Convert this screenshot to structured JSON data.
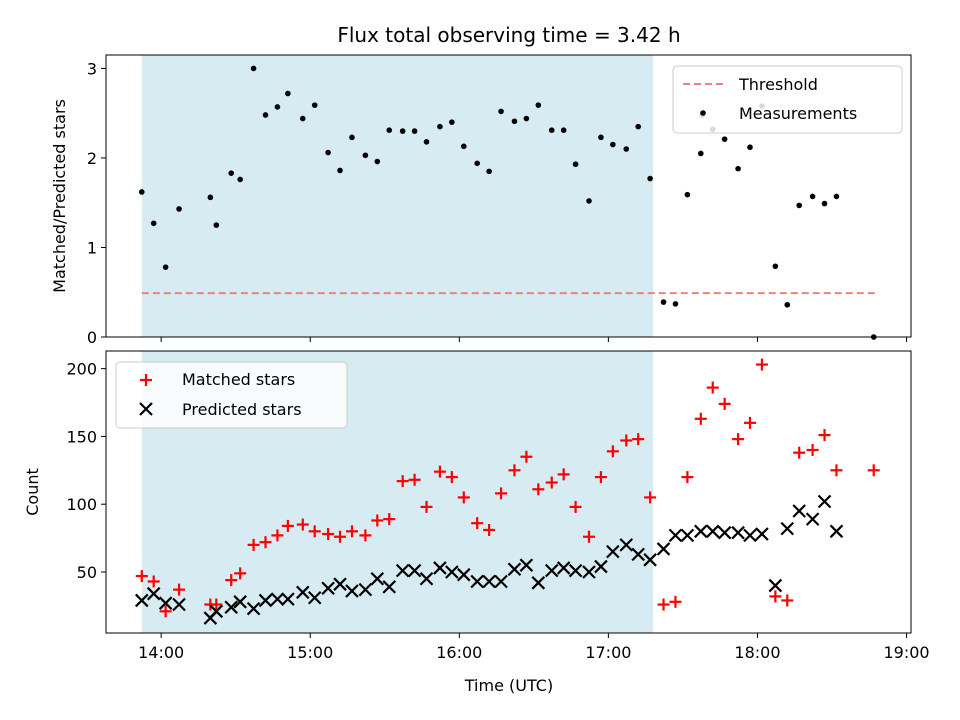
{
  "chart_data": [
    {
      "type": "scatter",
      "title": "Flux total observing time = 3.42 h",
      "ylabel": "Matched/Predicted stars",
      "xlabel": "",
      "x_unit": "hours UTC",
      "xlim": [
        13.63,
        19.03
      ],
      "ylim": [
        0,
        3.15
      ],
      "yticks": [
        0,
        1,
        2,
        3
      ],
      "xticks": [
        14,
        15,
        16,
        17,
        18,
        19
      ],
      "legend_position": "upper right",
      "shaded_interval": [
        13.87,
        17.3
      ],
      "shade_color": "#add8e6",
      "threshold": {
        "name": "Threshold",
        "value": 0.49,
        "x_range": [
          13.87,
          18.8
        ],
        "color": "#f08080"
      },
      "series": [
        {
          "name": "Measurements",
          "color": "#000000",
          "points": [
            [
              13.87,
              1.62
            ],
            [
              13.95,
              1.27
            ],
            [
              14.03,
              0.78
            ],
            [
              14.12,
              1.43
            ],
            [
              14.33,
              1.56
            ],
            [
              14.37,
              1.25
            ],
            [
              14.47,
              1.83
            ],
            [
              14.53,
              1.76
            ],
            [
              14.62,
              3.0
            ],
            [
              14.7,
              2.48
            ],
            [
              14.78,
              2.57
            ],
            [
              14.85,
              2.72
            ],
            [
              14.95,
              2.44
            ],
            [
              15.03,
              2.59
            ],
            [
              15.12,
              2.06
            ],
            [
              15.2,
              1.86
            ],
            [
              15.28,
              2.23
            ],
            [
              15.37,
              2.03
            ],
            [
              15.45,
              1.96
            ],
            [
              15.53,
              2.31
            ],
            [
              15.62,
              2.3
            ],
            [
              15.7,
              2.3
            ],
            [
              15.78,
              2.18
            ],
            [
              15.87,
              2.35
            ],
            [
              15.95,
              2.4
            ],
            [
              16.03,
              2.13
            ],
            [
              16.12,
              1.94
            ],
            [
              16.2,
              1.85
            ],
            [
              16.28,
              2.52
            ],
            [
              16.37,
              2.41
            ],
            [
              16.45,
              2.44
            ],
            [
              16.53,
              2.59
            ],
            [
              16.62,
              2.31
            ],
            [
              16.7,
              2.31
            ],
            [
              16.78,
              1.93
            ],
            [
              16.87,
              1.52
            ],
            [
              16.95,
              2.23
            ],
            [
              17.03,
              2.15
            ],
            [
              17.12,
              2.1
            ],
            [
              17.2,
              2.35
            ],
            [
              17.28,
              1.77
            ],
            [
              17.37,
              0.39
            ],
            [
              17.45,
              0.37
            ],
            [
              17.53,
              1.59
            ],
            [
              17.62,
              2.05
            ],
            [
              17.63,
              2.48
            ],
            [
              17.7,
              2.32
            ],
            [
              17.78,
              2.21
            ],
            [
              17.87,
              1.88
            ],
            [
              17.95,
              2.12
            ],
            [
              18.03,
              2.58
            ],
            [
              18.12,
              0.79
            ],
            [
              18.2,
              0.36
            ],
            [
              18.28,
              1.47
            ],
            [
              18.37,
              1.57
            ],
            [
              18.45,
              1.49
            ],
            [
              18.53,
              1.57
            ],
            [
              18.78,
              0.0
            ]
          ]
        }
      ]
    },
    {
      "type": "scatter",
      "title": "",
      "ylabel": "Count",
      "xlabel": "Time (UTC)",
      "x_unit": "hours UTC",
      "xlim": [
        13.63,
        19.03
      ],
      "ylim": [
        5,
        213
      ],
      "yticks": [
        50,
        100,
        150,
        200
      ],
      "xticks": [
        14,
        15,
        16,
        17,
        18,
        19
      ],
      "xtick_labels": [
        "14:00",
        "15:00",
        "16:00",
        "17:00",
        "18:00",
        "19:00"
      ],
      "legend_position": "upper left",
      "shaded_interval": [
        13.87,
        17.3
      ],
      "shade_color": "#add8e6",
      "series": [
        {
          "name": "Matched stars",
          "marker": "plus",
          "color": "#ff0000",
          "points": [
            [
              13.87,
              47
            ],
            [
              13.95,
              43
            ],
            [
              14.03,
              21
            ],
            [
              14.12,
              37
            ],
            [
              14.33,
              26
            ],
            [
              14.37,
              26
            ],
            [
              14.47,
              44
            ],
            [
              14.53,
              49
            ],
            [
              14.62,
              70
            ],
            [
              14.7,
              72
            ],
            [
              14.78,
              77
            ],
            [
              14.85,
              84
            ],
            [
              14.95,
              85
            ],
            [
              15.03,
              80
            ],
            [
              15.12,
              78
            ],
            [
              15.2,
              76
            ],
            [
              15.28,
              80
            ],
            [
              15.37,
              77
            ],
            [
              15.45,
              88
            ],
            [
              15.53,
              89
            ],
            [
              15.62,
              117
            ],
            [
              15.7,
              118
            ],
            [
              15.78,
              98
            ],
            [
              15.87,
              124
            ],
            [
              15.95,
              120
            ],
            [
              16.03,
              105
            ],
            [
              16.12,
              86
            ],
            [
              16.2,
              81
            ],
            [
              16.28,
              108
            ],
            [
              16.37,
              125
            ],
            [
              16.45,
              135
            ],
            [
              16.53,
              111
            ],
            [
              16.62,
              116
            ],
            [
              16.7,
              122
            ],
            [
              16.78,
              98
            ],
            [
              16.87,
              76
            ],
            [
              16.95,
              120
            ],
            [
              17.03,
              139
            ],
            [
              17.12,
              147
            ],
            [
              17.2,
              148
            ],
            [
              17.28,
              105
            ],
            [
              17.37,
              26
            ],
            [
              17.45,
              28
            ],
            [
              17.53,
              120
            ],
            [
              17.62,
              163
            ],
            [
              17.7,
              186
            ],
            [
              17.78,
              174
            ],
            [
              17.87,
              148
            ],
            [
              17.95,
              160
            ],
            [
              18.03,
              203
            ],
            [
              18.12,
              32
            ],
            [
              18.2,
              29
            ],
            [
              18.28,
              138
            ],
            [
              18.37,
              140
            ],
            [
              18.45,
              151
            ],
            [
              18.53,
              125
            ],
            [
              18.78,
              125
            ]
          ]
        },
        {
          "name": "Predicted stars",
          "marker": "x",
          "color": "#000000",
          "points": [
            [
              13.87,
              29
            ],
            [
              13.95,
              34
            ],
            [
              14.03,
              27
            ],
            [
              14.12,
              26
            ],
            [
              14.33,
              16
            ],
            [
              14.37,
              21
            ],
            [
              14.47,
              24
            ],
            [
              14.53,
              28
            ],
            [
              14.62,
              23
            ],
            [
              14.7,
              29
            ],
            [
              14.78,
              30
            ],
            [
              14.85,
              30
            ],
            [
              14.95,
              35
            ],
            [
              15.03,
              31
            ],
            [
              15.12,
              38
            ],
            [
              15.2,
              41
            ],
            [
              15.28,
              36
            ],
            [
              15.37,
              37
            ],
            [
              15.45,
              45
            ],
            [
              15.53,
              39
            ],
            [
              15.62,
              51
            ],
            [
              15.7,
              51
            ],
            [
              15.78,
              45
            ],
            [
              15.87,
              53
            ],
            [
              15.95,
              50
            ],
            [
              16.03,
              48
            ],
            [
              16.12,
              43
            ],
            [
              16.2,
              43
            ],
            [
              16.28,
              43
            ],
            [
              16.37,
              52
            ],
            [
              16.45,
              55
            ],
            [
              16.53,
              42
            ],
            [
              16.62,
              51
            ],
            [
              16.7,
              53
            ],
            [
              16.78,
              51
            ],
            [
              16.87,
              50
            ],
            [
              16.95,
              54
            ],
            [
              17.03,
              65
            ],
            [
              17.12,
              70
            ],
            [
              17.2,
              63
            ],
            [
              17.28,
              59
            ],
            [
              17.37,
              67
            ],
            [
              17.45,
              77
            ],
            [
              17.53,
              77
            ],
            [
              17.62,
              80
            ],
            [
              17.7,
              80
            ],
            [
              17.78,
              79
            ],
            [
              17.87,
              79
            ],
            [
              17.95,
              77
            ],
            [
              18.03,
              78
            ],
            [
              18.12,
              40
            ],
            [
              18.2,
              82
            ],
            [
              18.28,
              95
            ],
            [
              18.37,
              89
            ],
            [
              18.45,
              102
            ],
            [
              18.53,
              80
            ]
          ]
        }
      ]
    }
  ]
}
